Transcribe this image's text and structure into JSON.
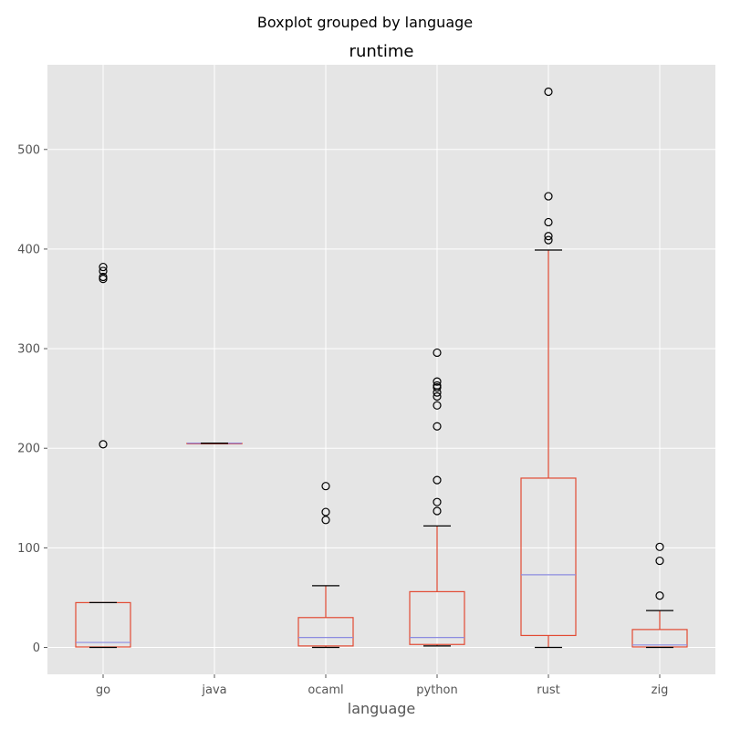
{
  "chart_data": {
    "type": "boxplot",
    "suptitle": "Boxplot grouped by language",
    "title": "runtime",
    "xlabel": "language",
    "ylabel": "",
    "ylim": [
      -27,
      585
    ],
    "yticks": [
      0,
      100,
      200,
      300,
      400,
      500
    ],
    "grid": true,
    "categories": [
      "go",
      "java",
      "ocaml",
      "python",
      "rust",
      "zig"
    ],
    "boxes": [
      {
        "label": "go",
        "whislo": 0,
        "q1": 0.5,
        "med": 5,
        "q3": 45,
        "whishi": 45,
        "fliers": [
          204,
          370,
          372,
          378,
          382
        ]
      },
      {
        "label": "java",
        "whislo": 205,
        "q1": 205,
        "med": 205,
        "q3": 205,
        "whishi": 205,
        "fliers": []
      },
      {
        "label": "ocaml",
        "whislo": 0,
        "q1": 1.5,
        "med": 10,
        "q3": 30,
        "whishi": 62,
        "fliers": [
          128,
          136,
          162
        ]
      },
      {
        "label": "python",
        "whislo": 1.5,
        "q1": 3,
        "med": 10,
        "q3": 56,
        "whishi": 122,
        "fliers": [
          137,
          146,
          168,
          222,
          243,
          252,
          256,
          261,
          263,
          267,
          296
        ]
      },
      {
        "label": "rust",
        "whislo": 0,
        "q1": 12,
        "med": 73,
        "q3": 170,
        "whishi": 399,
        "fliers": [
          409,
          413,
          427,
          453,
          558
        ]
      },
      {
        "label": "zig",
        "whislo": 0,
        "q1": 0.5,
        "med": 2.5,
        "q3": 18,
        "whishi": 37,
        "fliers": [
          52,
          87,
          101
        ]
      }
    ],
    "colors": {
      "background": "#e5e5e5",
      "grid": "#ffffff",
      "box": "#e24a33",
      "median": "#8c8ce0",
      "whisker_cap": "#000000",
      "flier": "#000000"
    }
  }
}
